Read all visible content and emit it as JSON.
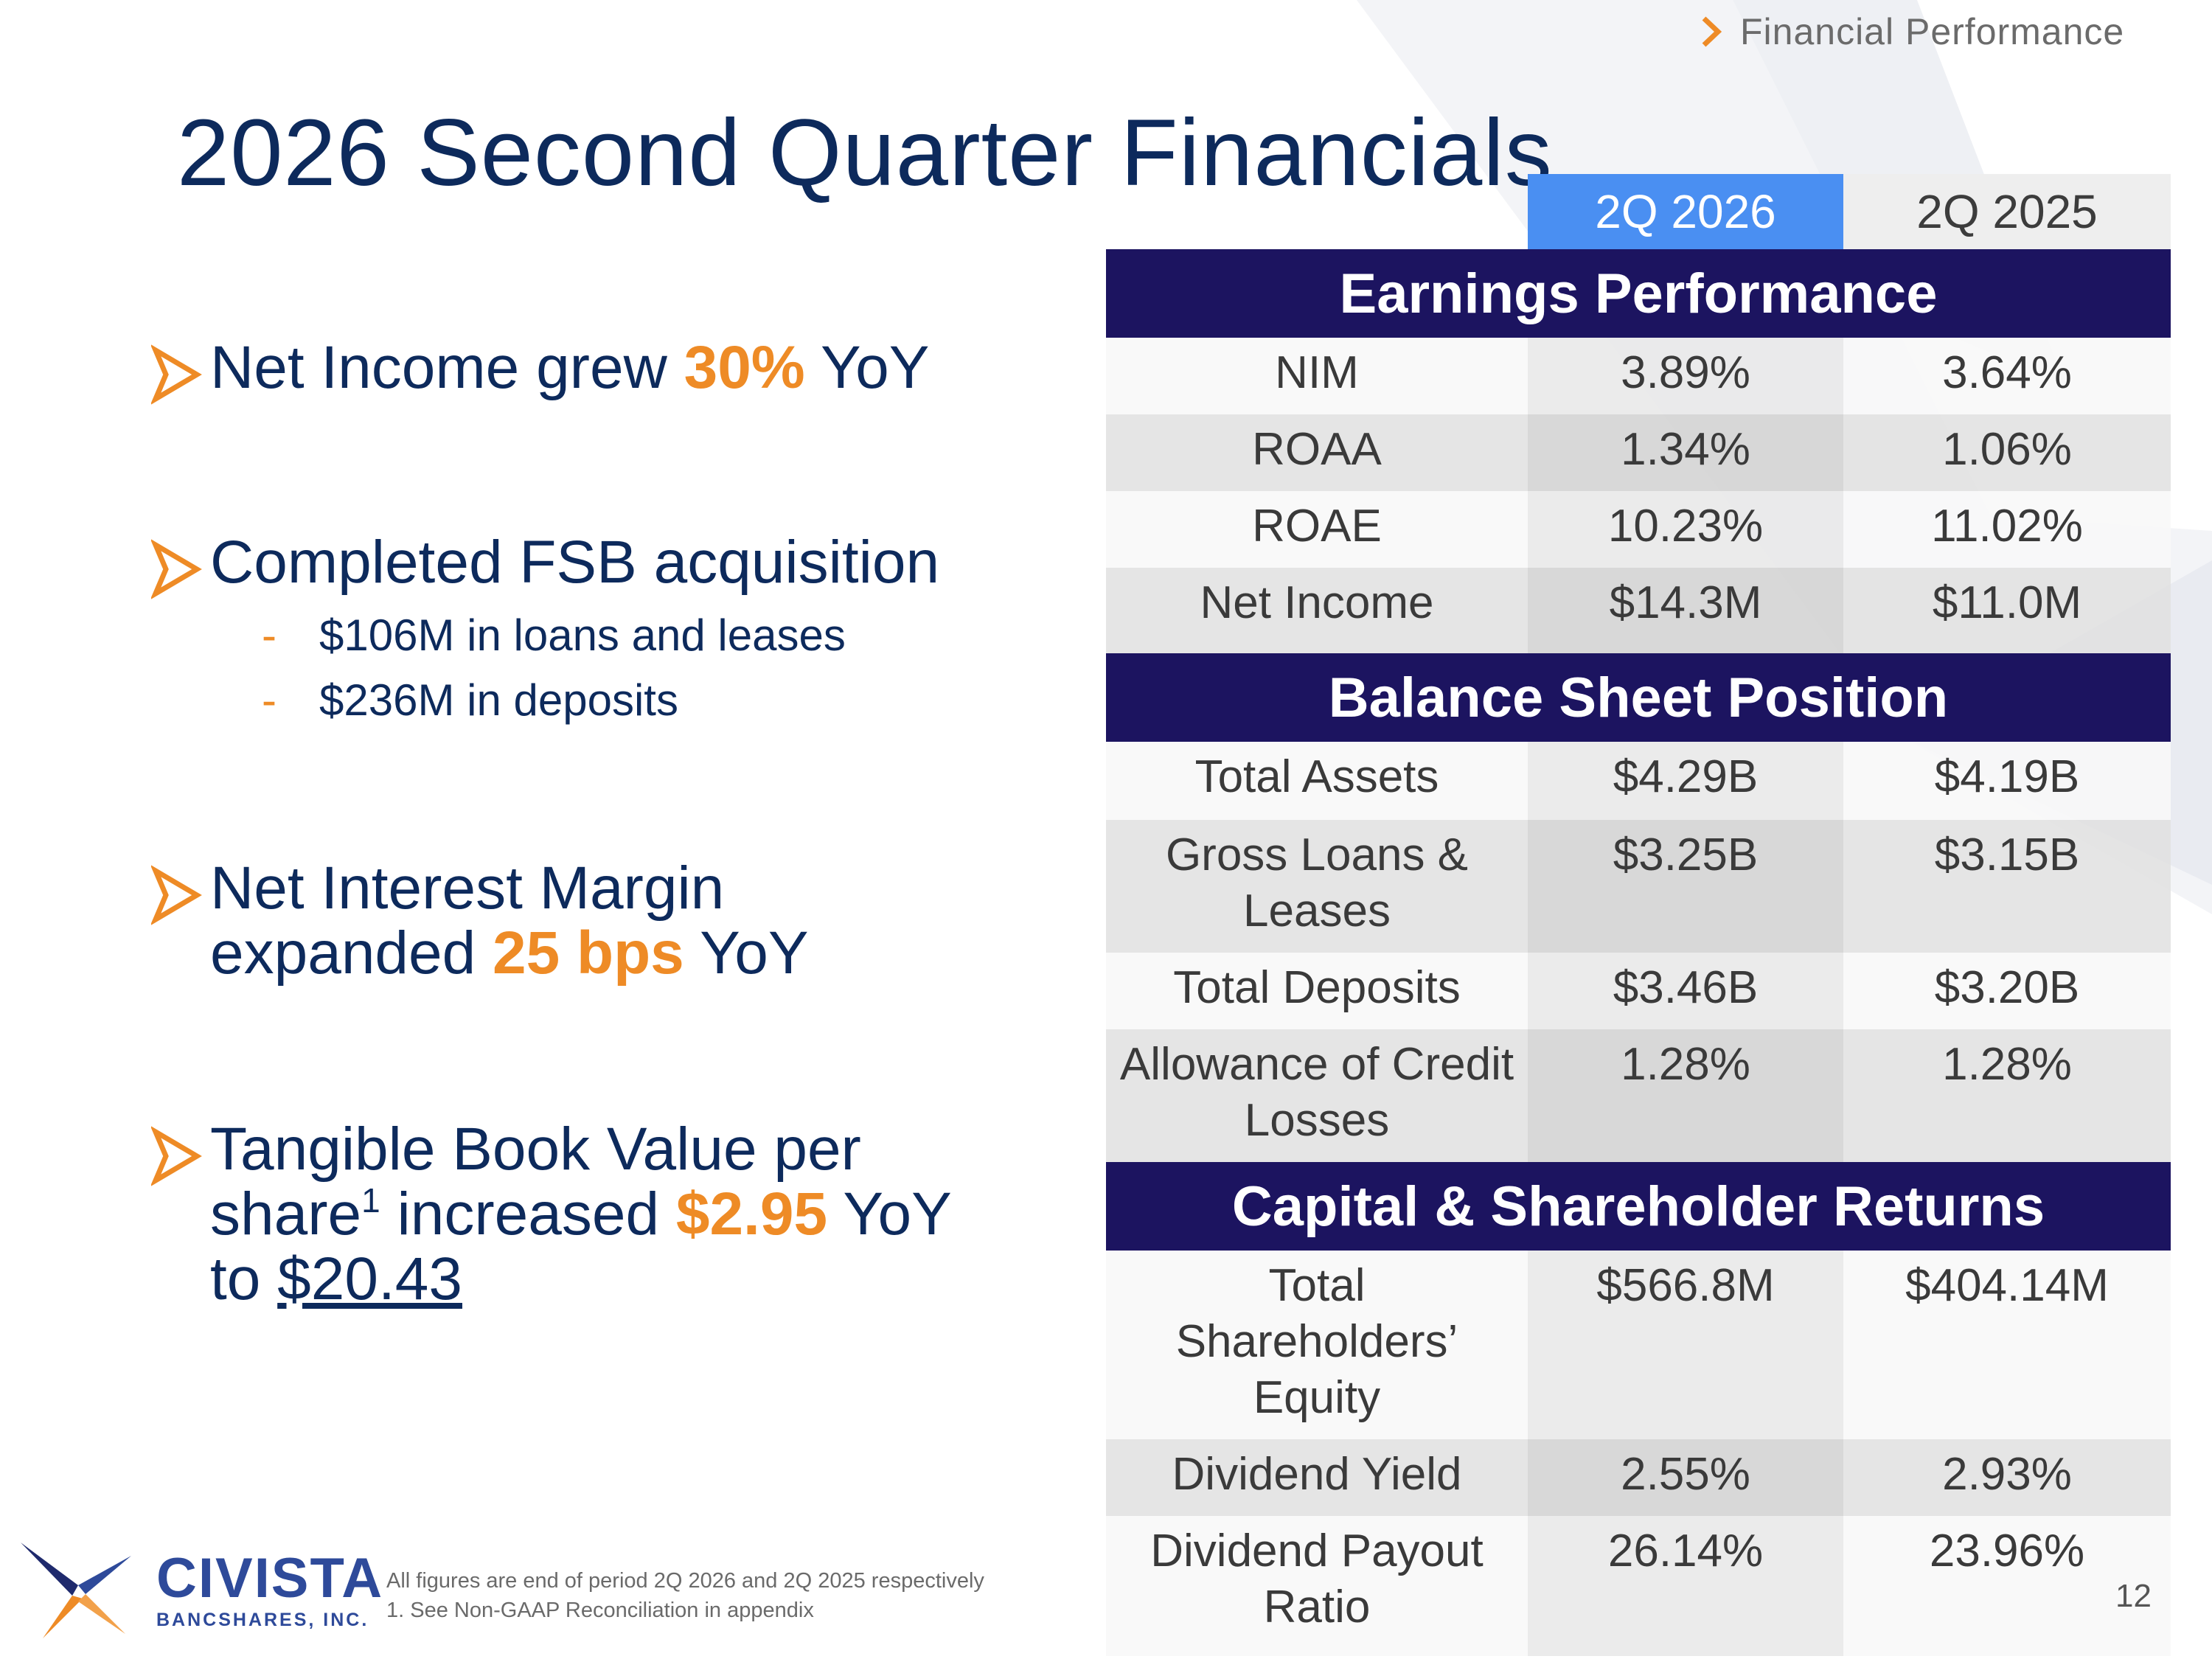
{
  "breadcrumb": "Financial Performance",
  "title": "2026 Second Quarter Financials",
  "bullets": {
    "b1": {
      "pre": "Net Income grew ",
      "accent": "30%",
      "post": " YoY"
    },
    "b2": {
      "text": "Completed FSB acquisition",
      "sub1": "$106M in loans and leases",
      "sub2": "$236M in deposits",
      "dash": "-"
    },
    "b3": {
      "line1": "Net Interest Margin",
      "line2_pre": "expanded ",
      "accent": "25 bps",
      "post": " YoY"
    },
    "b4": {
      "line1": "Tangible Book Value per",
      "line2_pre": "share",
      "sup": "1",
      "line2_mid": " increased ",
      "accent": "$2.95",
      "post": " YoY",
      "line3_pre": "to ",
      "value": "$20.43"
    }
  },
  "table": {
    "col_2026": "2Q 2026",
    "col_2025": "2Q 2025",
    "sections": {
      "earnings": "Earnings Performance",
      "balance": "Balance Sheet Position",
      "capital": "Capital & Shareholder Returns"
    },
    "rows": [
      {
        "label": "NIM",
        "v2026": "3.89%",
        "v2025": "3.64%"
      },
      {
        "label": "ROAA",
        "v2026": "1.34%",
        "v2025": "1.06%"
      },
      {
        "label": "ROAE",
        "v2026": "10.23%",
        "v2025": "11.02%"
      },
      {
        "label": "Net Income",
        "v2026": "$14.3M",
        "v2025": "$11.0M"
      },
      {
        "label": "Total Assets",
        "v2026": "$4.29B",
        "v2025": "$4.19B"
      },
      {
        "label": "Gross Loans & Leases",
        "v2026": "$3.25B",
        "v2025": "$3.15B"
      },
      {
        "label": "Total Deposits",
        "v2026": "$3.46B",
        "v2025": "$3.20B"
      },
      {
        "label": "Allowance of Credit Losses",
        "v2026": "1.28%",
        "v2025": "1.28%"
      },
      {
        "label": "Total Shareholders’ Equity",
        "v2026": "$566.8M",
        "v2025": "$404.14M"
      },
      {
        "label": "Dividend Yield",
        "v2026": "2.55%",
        "v2025": "2.93%"
      },
      {
        "label": "Dividend Payout Ratio",
        "v2026": "26.14%",
        "v2025": "23.96%"
      }
    ]
  },
  "footer": {
    "brand": "CIVISTA",
    "brand_sub": "BANCSHARES, INC.",
    "note1": "All figures are end of period 2Q 2026 and 2Q 2025 respectively",
    "note2": "1. See Non-GAAP Reconciliation in appendix",
    "page_number": "12"
  },
  "colors": {
    "navy": "#0d2a5c",
    "accent_orange": "#ee8b26",
    "section_bar": "#1c1460",
    "header_blue": "#4a8ff2"
  }
}
